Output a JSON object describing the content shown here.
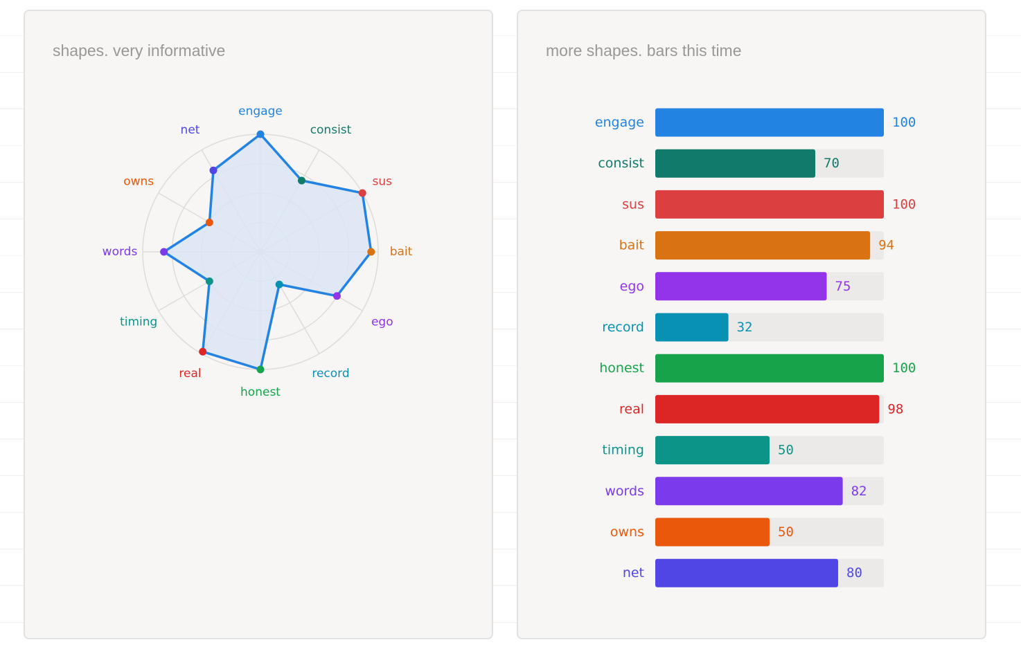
{
  "panels": {
    "radar_title": "shapes. very informative",
    "bars_title": "more shapes. bars this time"
  },
  "chart_data": [
    {
      "type": "radar",
      "title": "shapes. very informative",
      "rlim": [
        0,
        100
      ],
      "grid_levels": [
        25,
        50,
        75,
        100
      ],
      "categories": [
        "engage",
        "consist",
        "sus",
        "bait",
        "ego",
        "record",
        "honest",
        "real",
        "timing",
        "words",
        "owns",
        "net"
      ],
      "values": [
        100,
        70,
        100,
        94,
        75,
        32,
        100,
        98,
        50,
        82,
        50,
        80
      ],
      "colors": [
        "#2383e2",
        "#127a6b",
        "#dc3f3f",
        "#d97212",
        "#9333ea",
        "#0891b2",
        "#16a34a",
        "#dc2626",
        "#0d9488",
        "#7c3aed",
        "#ea580c",
        "#4f46e5"
      ],
      "line_color": "#2383e2",
      "fill_color": "#dbe5f3"
    },
    {
      "type": "bar",
      "orientation": "horizontal",
      "title": "more shapes. bars this time",
      "xlim": [
        0,
        100
      ],
      "categories": [
        "engage",
        "consist",
        "sus",
        "bait",
        "ego",
        "record",
        "honest",
        "real",
        "timing",
        "words",
        "owns",
        "net"
      ],
      "values": [
        100,
        70,
        100,
        94,
        75,
        32,
        100,
        98,
        50,
        82,
        50,
        80
      ],
      "colors": [
        "#2383e2",
        "#127a6b",
        "#dc3f3f",
        "#d97212",
        "#9333ea",
        "#0891b2",
        "#16a34a",
        "#dc2626",
        "#0d9488",
        "#7c3aed",
        "#ea580c",
        "#4f46e5"
      ],
      "track_color": "#ebeae8"
    }
  ]
}
